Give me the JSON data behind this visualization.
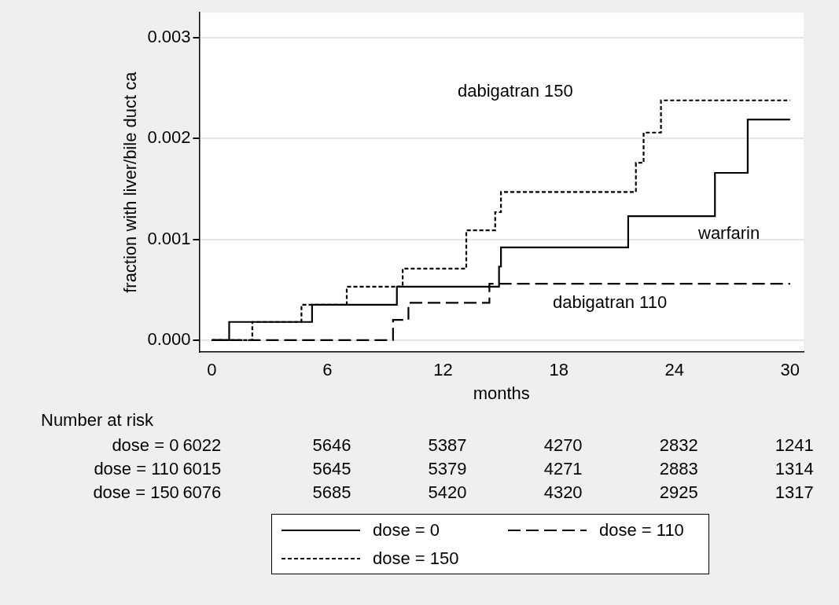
{
  "chart_data": {
    "type": "step",
    "xlabel": "months",
    "ylabel": "fraction with liver/bile duct ca",
    "xlim": [
      -0.65,
      30.7
    ],
    "xticks": [
      0,
      6,
      12,
      18,
      24,
      30
    ],
    "ylim": [
      -0.00012,
      0.00325
    ],
    "yticks": [
      {
        "value": 0,
        "label": "0.000"
      },
      {
        "value": 0.001,
        "label": "0.001"
      },
      {
        "value": 0.002,
        "label": "0.002"
      },
      {
        "value": 0.003,
        "label": "0.003"
      }
    ],
    "grid": "y",
    "legend": "bottom",
    "marker": "none",
    "series": [
      {
        "name": "dose = 0",
        "color": "#000000",
        "line_style": "solid",
        "x": [
          0,
          0.9,
          5.2,
          9.6,
          14.9,
          15.0,
          21.6,
          26.1,
          27.8,
          30
        ],
        "values": [
          0,
          0.00018,
          0.00035,
          0.00053,
          0.00073,
          0.00092,
          0.00123,
          0.00166,
          0.00219,
          0.00219
        ]
      },
      {
        "name": "dose = 110",
        "color": "#000000",
        "line_style": "dashed",
        "x": [
          0,
          9.4,
          10.2,
          14.4,
          30
        ],
        "values": [
          0,
          0.0002,
          0.00037,
          0.00056,
          0.00056
        ]
      },
      {
        "name": "dose = 150",
        "color": "#000000",
        "line_style": "dotted",
        "x": [
          0,
          2.1,
          4.65,
          7.0,
          9.9,
          13.2,
          14.7,
          15.0,
          22.0,
          22.4,
          23.3,
          30
        ],
        "values": [
          0,
          0.00018,
          0.00035,
          0.00053,
          0.00071,
          0.00109,
          0.00127,
          0.00147,
          0.00176,
          0.00206,
          0.00238,
          0.00238
        ]
      }
    ],
    "annotations": [
      "dabigatran 150",
      "warfarin",
      "dabigatran 110",
      "Number at risk",
      "dose = 0",
      "6022",
      "5646",
      "5387",
      "4270",
      "2832",
      "1241",
      "dose = 110",
      "6015",
      "5645",
      "5379",
      "4271",
      "2883",
      "1314",
      "dose = 150",
      "6076",
      "5685",
      "5420",
      "4320",
      "2925",
      "1317"
    ]
  }
}
